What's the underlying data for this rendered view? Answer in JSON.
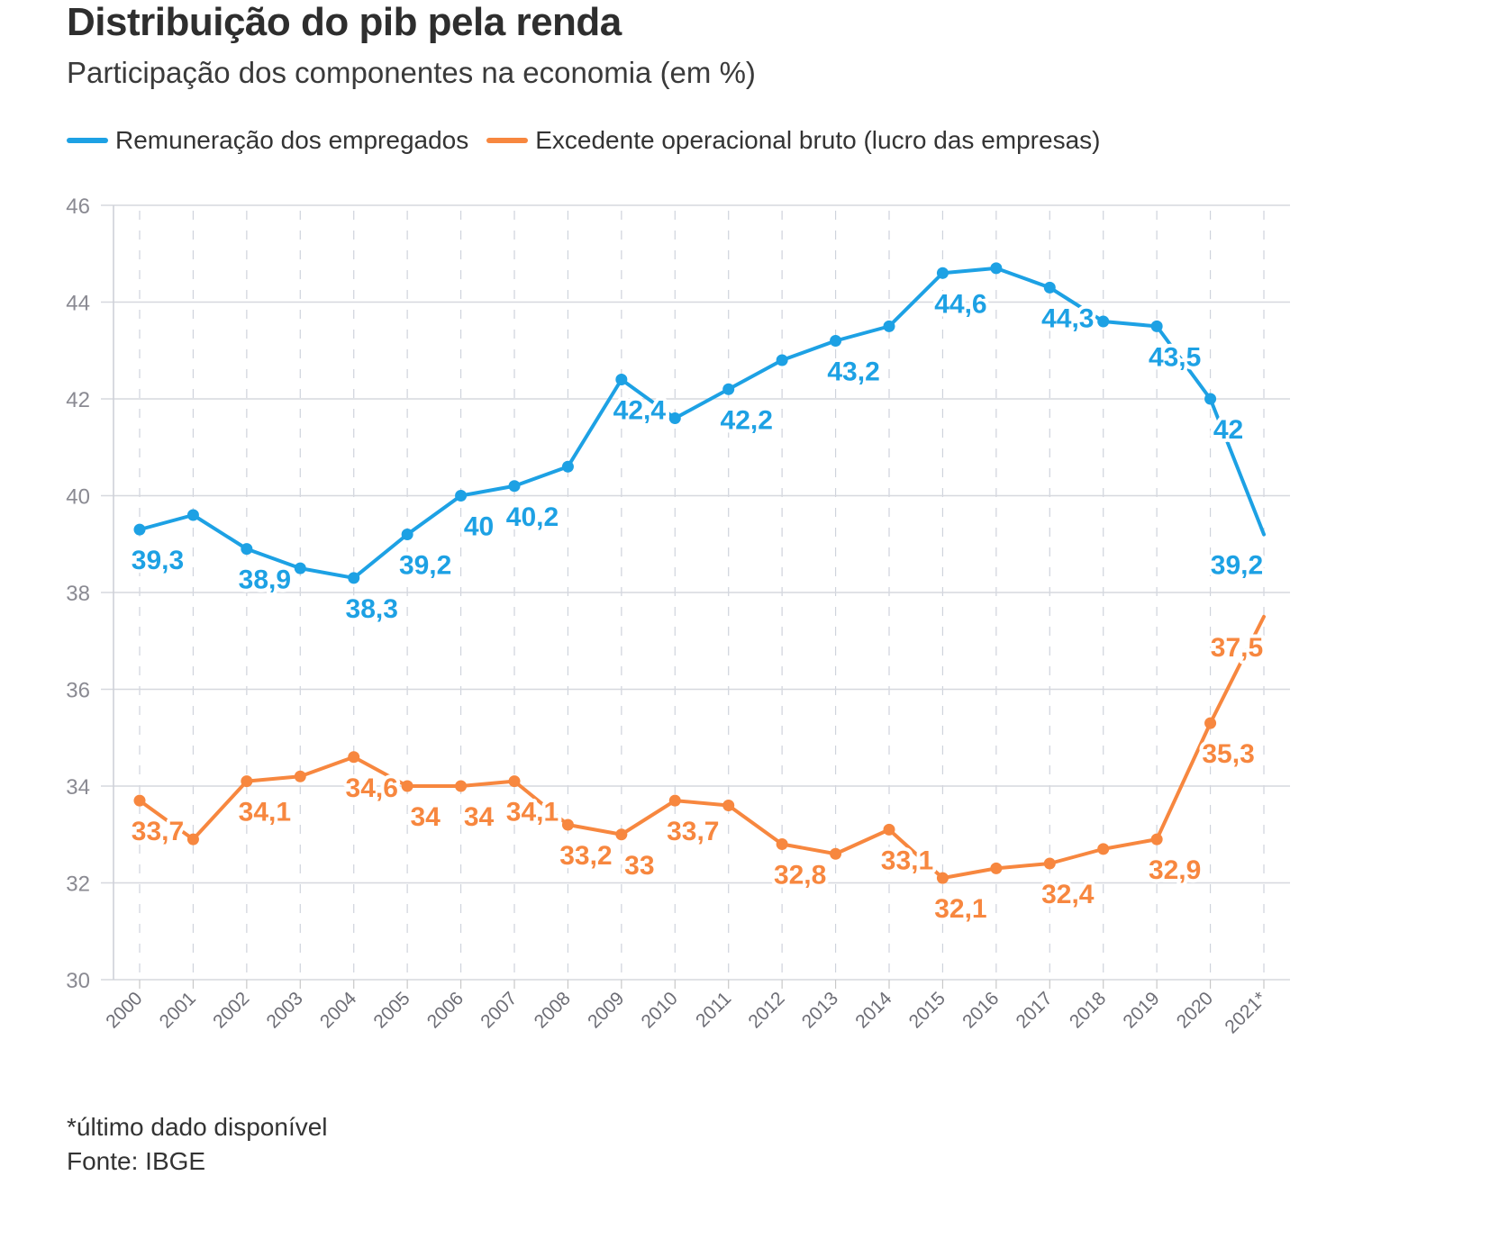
{
  "header": {
    "title": "Distribuição do pib pela renda",
    "subtitle": "Participação dos componentes na economia (em %)"
  },
  "legend": [
    {
      "label": "Remuneração dos empregados",
      "color": "#1da1e4"
    },
    {
      "label": "Excedente operacional bruto (lucro das empresas)",
      "color": "#f7873f"
    }
  ],
  "footer": {
    "note": "*último dado disponível",
    "source": "Fonte: IBGE"
  },
  "chart_data": {
    "type": "line",
    "title": "Distribuição do pib pela renda",
    "subtitle": "Participação dos componentes na economia (em %)",
    "xlabel": "",
    "ylabel": "",
    "ylim": [
      30,
      46
    ],
    "yticks": [
      30,
      32,
      34,
      36,
      38,
      40,
      42,
      44,
      46
    ],
    "grid": true,
    "legend_position": "top-left",
    "categories": [
      "2000",
      "2001",
      "2002",
      "2003",
      "2004",
      "2005",
      "2006",
      "2007",
      "2008",
      "2009",
      "2010",
      "2011",
      "2012",
      "2013",
      "2014",
      "2015",
      "2016",
      "2017",
      "2018",
      "2019",
      "2020",
      "2021*"
    ],
    "series": [
      {
        "name": "Remuneração dos empregados",
        "color": "#1da1e4",
        "values": [
          39.3,
          39.6,
          38.9,
          38.5,
          38.3,
          39.2,
          40.0,
          40.2,
          40.6,
          42.4,
          41.6,
          42.2,
          42.8,
          43.2,
          43.5,
          44.6,
          44.7,
          44.3,
          43.6,
          43.5,
          42.0,
          39.2
        ],
        "labels": [
          {
            "index": 0,
            "text": "39,3",
            "pos": "below"
          },
          {
            "index": 2,
            "text": "38,9",
            "pos": "below"
          },
          {
            "index": 4,
            "text": "38,3",
            "pos": "below"
          },
          {
            "index": 5,
            "text": "39,2",
            "pos": "below"
          },
          {
            "index": 6,
            "text": "40",
            "pos": "below"
          },
          {
            "index": 7,
            "text": "40,2",
            "pos": "below"
          },
          {
            "index": 9,
            "text": "42,4",
            "pos": "below"
          },
          {
            "index": 11,
            "text": "42,2",
            "pos": "below"
          },
          {
            "index": 13,
            "text": "43,2",
            "pos": "below"
          },
          {
            "index": 15,
            "text": "44,6",
            "pos": "below"
          },
          {
            "index": 17,
            "text": "44,3",
            "pos": "below"
          },
          {
            "index": 19,
            "text": "43,5",
            "pos": "below"
          },
          {
            "index": 20,
            "text": "42",
            "pos": "below"
          },
          {
            "index": 21,
            "text": "39,2",
            "pos": "below"
          }
        ]
      },
      {
        "name": "Excedente operacional bruto (lucro das empresas)",
        "color": "#f7873f",
        "values": [
          33.7,
          32.9,
          34.1,
          34.2,
          34.6,
          34.0,
          34.0,
          34.1,
          33.2,
          33.0,
          33.7,
          33.6,
          32.8,
          32.6,
          33.1,
          32.1,
          32.3,
          32.4,
          32.7,
          32.9,
          35.3,
          37.5
        ],
        "labels": [
          {
            "index": 0,
            "text": "33,7",
            "pos": "below"
          },
          {
            "index": 2,
            "text": "34,1",
            "pos": "below"
          },
          {
            "index": 4,
            "text": "34,6",
            "pos": "below"
          },
          {
            "index": 5,
            "text": "34",
            "pos": "below"
          },
          {
            "index": 6,
            "text": "34",
            "pos": "below"
          },
          {
            "index": 7,
            "text": "34,1",
            "pos": "below"
          },
          {
            "index": 8,
            "text": "33,2",
            "pos": "below"
          },
          {
            "index": 9,
            "text": "33",
            "pos": "below"
          },
          {
            "index": 10,
            "text": "33,7",
            "pos": "below"
          },
          {
            "index": 12,
            "text": "32,8",
            "pos": "below"
          },
          {
            "index": 14,
            "text": "33,1",
            "pos": "below"
          },
          {
            "index": 15,
            "text": "32,1",
            "pos": "below"
          },
          {
            "index": 17,
            "text": "32,4",
            "pos": "below"
          },
          {
            "index": 19,
            "text": "32,9",
            "pos": "below"
          },
          {
            "index": 20,
            "text": "35,3",
            "pos": "below"
          },
          {
            "index": 21,
            "text": "37,5",
            "pos": "below"
          }
        ]
      }
    ]
  }
}
